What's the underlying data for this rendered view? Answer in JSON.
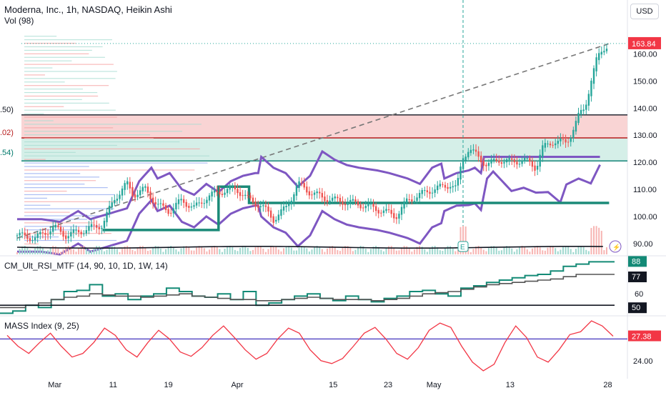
{
  "header": {
    "symbol_line": "Moderna, Inc., 1h, NASDAQ, Heikin Ashi",
    "volume_label": "Vol (98)",
    "currency_button": "USD"
  },
  "left_edge_labels": [
    ".50)",
    ".02)",
    ".54)"
  ],
  "indicators": {
    "rsi_title": "CM_Ult_RSI_MTF (14, 90, 10, 1D, 1W, 14)",
    "mass_title": "MASS Index (9, 25)"
  },
  "colors": {
    "bull": "#26a69a",
    "bear": "#ef5350",
    "purple": "#7e57c2",
    "teal_line": "#1b8a78",
    "red_zone": "#f9d4d4",
    "green_zone": "#d5efe8",
    "price_tag": "#f23645",
    "rsi_teal": "#138a76",
    "mass_line": "#f23645",
    "mass_level": "#5c4fc6"
  },
  "chart_data": [
    {
      "type": "candlestick",
      "title": "Moderna, Inc., 1h, NASDAQ, Heikin Ashi",
      "x_tick_labels": [
        "Mar",
        "11",
        "19",
        "Apr",
        "15",
        "23",
        "May",
        "13",
        "28"
      ],
      "y_ticks": [
        90,
        100,
        110,
        120,
        130,
        140,
        150,
        160
      ],
      "ylim": [
        86,
        172
      ],
      "last_price": 163.84,
      "horizontal_levels": [
        {
          "value": 137.5,
          "color": "#131722"
        },
        {
          "value": 129.0,
          "color": "#b71c1c"
        },
        {
          "value": 120.5,
          "color": "#00796b"
        }
      ],
      "zones": [
        {
          "from": 129.0,
          "to": 137.5,
          "color": "red"
        },
        {
          "from": 120.5,
          "to": 129.0,
          "color": "green"
        }
      ],
      "trendline": {
        "from": [
          0.0,
          92.0
        ],
        "to": [
          0.97,
          163.8
        ],
        "style": "dashed"
      },
      "candles_path": [
        [
          0.0,
          93
        ],
        [
          0.03,
          92
        ],
        [
          0.06,
          96
        ],
        [
          0.08,
          93
        ],
        [
          0.11,
          95
        ],
        [
          0.14,
          97
        ],
        [
          0.16,
          107
        ],
        [
          0.18,
          112
        ],
        [
          0.19,
          108
        ],
        [
          0.21,
          110
        ],
        [
          0.23,
          104
        ],
        [
          0.25,
          102
        ],
        [
          0.27,
          106
        ],
        [
          0.29,
          103
        ],
        [
          0.31,
          107
        ],
        [
          0.33,
          109
        ],
        [
          0.35,
          110
        ],
        [
          0.36,
          110
        ],
        [
          0.38,
          106
        ],
        [
          0.4,
          104
        ],
        [
          0.42,
          99
        ],
        [
          0.44,
          103
        ],
        [
          0.46,
          112
        ],
        [
          0.48,
          109
        ],
        [
          0.5,
          107
        ],
        [
          0.52,
          106
        ],
        [
          0.55,
          105
        ],
        [
          0.57,
          104
        ],
        [
          0.6,
          102
        ],
        [
          0.62,
          100
        ],
        [
          0.64,
          106
        ],
        [
          0.66,
          108
        ],
        [
          0.68,
          110
        ],
        [
          0.7,
          111
        ],
        [
          0.71,
          112
        ],
        [
          0.72,
          110
        ],
        [
          0.73,
          122
        ],
        [
          0.74,
          125
        ],
        [
          0.75,
          123
        ],
        [
          0.77,
          119
        ],
        [
          0.79,
          121
        ],
        [
          0.81,
          120
        ],
        [
          0.83,
          121
        ],
        [
          0.85,
          118
        ],
        [
          0.86,
          125
        ],
        [
          0.88,
          128
        ],
        [
          0.9,
          127
        ],
        [
          0.91,
          132
        ],
        [
          0.92,
          137
        ],
        [
          0.93,
          140
        ],
        [
          0.94,
          150
        ],
        [
          0.95,
          158
        ],
        [
          0.96,
          162
        ],
        [
          0.97,
          164
        ]
      ]
    },
    {
      "type": "line",
      "title": "CM_Ult_RSI_MTF (14, 90, 10, 1D, 1W, 14)",
      "y_ticks": [
        60
      ],
      "value_labels": [
        88,
        77,
        50
      ],
      "series": [
        {
          "values": [
            43,
            45,
            50,
            48,
            55,
            62,
            63,
            68,
            58,
            60,
            55,
            58,
            60,
            65,
            62,
            58,
            57,
            60,
            55,
            62,
            50,
            52,
            55,
            58,
            60,
            56,
            54,
            58,
            55,
            53,
            56,
            58,
            62,
            63,
            60,
            58,
            65,
            67,
            70,
            72,
            74,
            76,
            77,
            80,
            84,
            86,
            88,
            88
          ]
        },
        {
          "values": [
            48,
            48,
            50,
            52,
            55,
            57,
            58,
            60,
            59,
            58,
            58,
            57,
            58,
            59,
            60,
            58,
            57,
            56,
            55,
            55,
            54,
            54,
            55,
            56,
            57,
            56,
            55,
            55,
            55,
            54,
            55,
            56,
            58,
            60,
            61,
            62,
            64,
            66,
            68,
            69,
            70,
            71,
            72,
            73,
            75,
            77,
            77,
            77
          ]
        },
        {
          "values": [
            50,
            50,
            50,
            50,
            50,
            50,
            50,
            50,
            50,
            50,
            50,
            50,
            50,
            50,
            50,
            50,
            50,
            50,
            50,
            50,
            50,
            50,
            50,
            50,
            50,
            50,
            50,
            50,
            50,
            50,
            50,
            50,
            50,
            50,
            50,
            50,
            50,
            50,
            50,
            50,
            50,
            50,
            50,
            50,
            50,
            50,
            50,
            50
          ]
        }
      ],
      "ylim": [
        42,
        92
      ]
    },
    {
      "type": "line",
      "title": "MASS Index (9, 25)",
      "y_ticks": [
        24.0
      ],
      "value_labels": [
        27.38
      ],
      "level": 27.0,
      "ylim": [
        22.0,
        30.0
      ],
      "series": [
        {
          "values": [
            27.5,
            26.0,
            25.0,
            26.5,
            27.8,
            26.0,
            24.5,
            25.0,
            26.5,
            28.5,
            27.5,
            25.5,
            24.5,
            26.5,
            28.2,
            27.0,
            25.2,
            24.6,
            25.8,
            27.5,
            28.8,
            27.2,
            25.5,
            24.2,
            25.0,
            27.0,
            28.5,
            27.8,
            25.5,
            24.0,
            23.6,
            24.3,
            26.0,
            27.8,
            28.6,
            27.0,
            25.0,
            24.2,
            25.8,
            28.2,
            29.2,
            28.6,
            26.0,
            23.8,
            22.6,
            23.5,
            26.5,
            28.8,
            27.2,
            24.5,
            23.8,
            25.5,
            27.6,
            28.0,
            29.5,
            28.8,
            27.38
          ]
        }
      ]
    }
  ]
}
